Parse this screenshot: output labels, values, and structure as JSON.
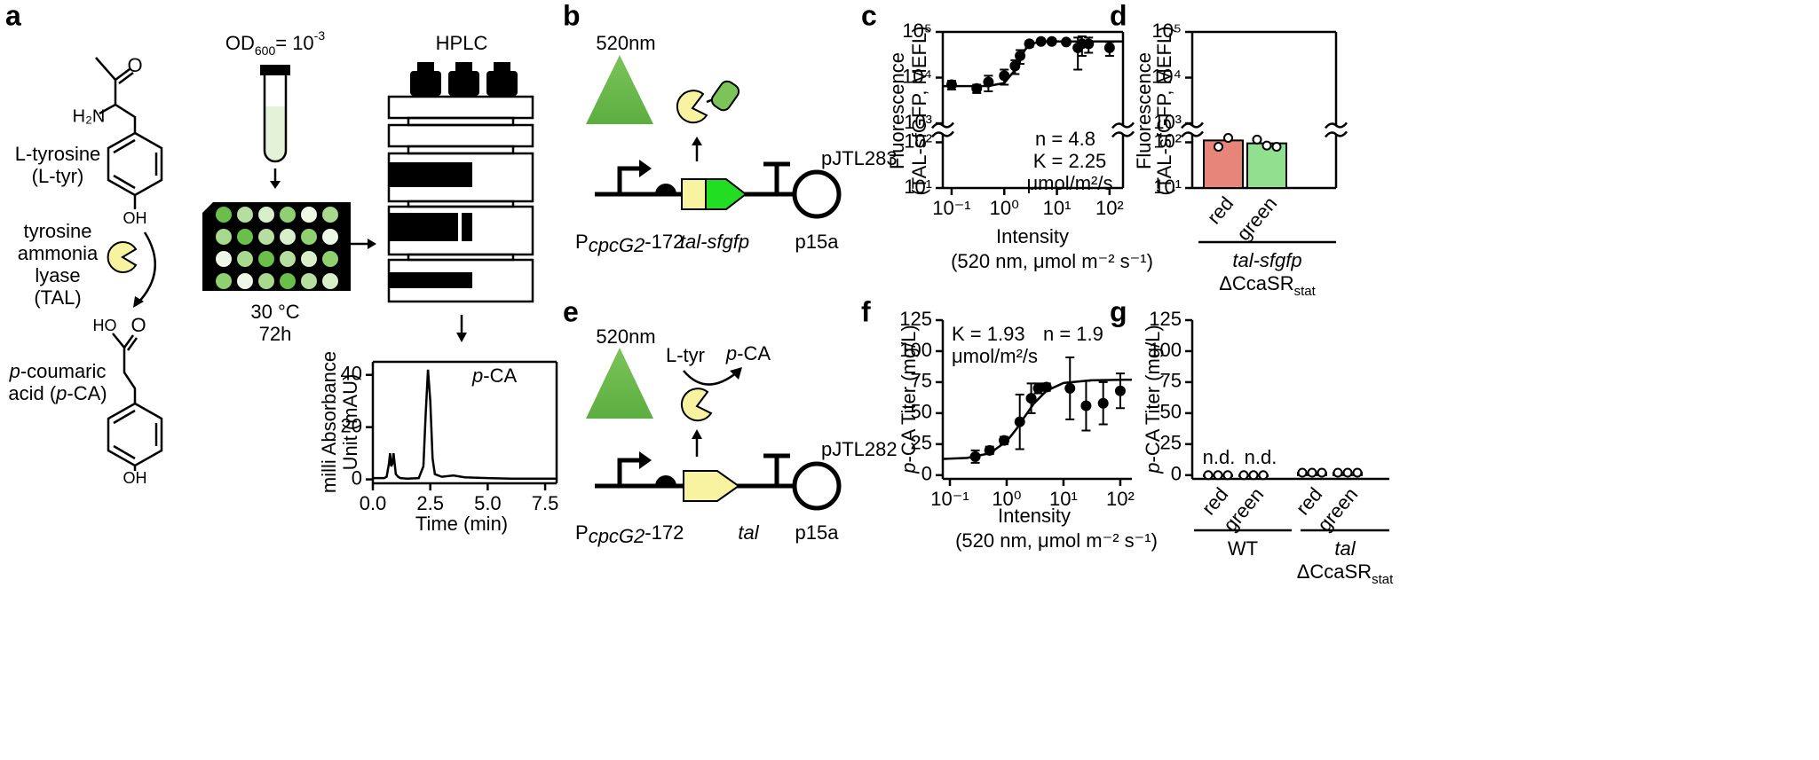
{
  "panel_labels": [
    "a",
    "b",
    "c",
    "d",
    "e",
    "f",
    "g"
  ],
  "panel_a": {
    "substrate": [
      "L-tyrosine",
      "(L-tyr)"
    ],
    "enzyme": [
      "tyrosine",
      "ammonia",
      "lyase",
      "(TAL)"
    ],
    "product": [
      [
        "p",
        "-coumaric"
      ],
      [
        "acid (",
        "p",
        "-CA)"
      ]
    ],
    "atoms": {
      "h2n": "H₂N",
      "o_top": "O",
      "oh_top": "OH",
      "ho": "HO",
      "o_bottom": "O",
      "oh_bottom": "OH"
    },
    "od": [
      "OD",
      "600",
      "= 10",
      "-3"
    ],
    "conditions": [
      "30 °C",
      "72h"
    ],
    "hplc": "HPLC"
  },
  "panel_b": {
    "light": "520nm",
    "plasmid": "pJTL283",
    "promoter": [
      "P",
      "cpcG2",
      "-172"
    ],
    "gene": "tal-sfgfp",
    "origin": "p15a"
  },
  "panel_e": {
    "light": "520nm",
    "substrate": "L-tyr",
    "product": [
      "p",
      "-CA"
    ],
    "plasmid": "pJTL282",
    "promoter": [
      "P",
      "cpcG2",
      "-172"
    ],
    "gene": "tal",
    "origin": "p15a"
  },
  "chart_data": [
    {
      "type": "line",
      "x_label": "Time (min)",
      "y_label": [
        "milli Absorbance",
        "Unit (mAU)"
      ],
      "annotation": [
        "p",
        "-CA"
      ],
      "color": "#000000",
      "xlim": [
        0,
        8
      ],
      "xticks": [
        {
          "value": 0,
          "label": "0.0"
        },
        {
          "value": 2.5,
          "label": "2.5"
        },
        {
          "value": 5,
          "label": "5.0"
        },
        {
          "value": 7.5,
          "label": "7.5"
        }
      ],
      "ylim": [
        -1.5,
        45
      ],
      "yticks": [
        0,
        20,
        40
      ],
      "x": [
        0.0,
        0.5,
        0.6,
        0.7,
        0.75,
        0.8,
        0.85,
        0.9,
        0.95,
        1.0,
        1.1,
        1.2,
        1.5,
        2.0,
        2.2,
        2.3,
        2.4,
        2.5,
        2.6,
        2.7,
        3.0,
        3.5,
        4.0,
        5.0,
        6.0,
        7.0,
        8.0
      ],
      "values": [
        0.5,
        0.5,
        1,
        6,
        10,
        5,
        6,
        10,
        6,
        2,
        1,
        0.5,
        0.3,
        0.5,
        5,
        25,
        42,
        30,
        8,
        2,
        1,
        1.5,
        0.8,
        0.5,
        0.3,
        0.3,
        0.3
      ]
    },
    {
      "type": "scatter",
      "x_label": [
        "Intensity",
        "(520 nm, μmol m⁻² s⁻¹)"
      ],
      "y_label": [
        "Fluorescence",
        "(TAL-sfGFP, MEFL)"
      ],
      "annotations": [
        "n = 4.8",
        "K = 2.25",
        "μmol/m²/s"
      ],
      "color": "#000000",
      "xscale": "log",
      "yscale": "log",
      "xlim": [
        0.068,
        180
      ],
      "ylim": [
        10,
        100000
      ],
      "y_break": [
        150,
        900
      ],
      "xticks": [
        {
          "value": 0.1,
          "label": "10⁻¹"
        },
        {
          "value": 1,
          "label": "10⁰"
        },
        {
          "value": 10,
          "label": "10¹"
        },
        {
          "value": 100,
          "label": "10²"
        }
      ],
      "yticks": [
        {
          "value": 10,
          "label": "10¹"
        },
        {
          "value": 100,
          "label": "10²"
        },
        {
          "value": 1000,
          "label": "10³"
        },
        {
          "value": 10000,
          "label": "10⁴"
        },
        {
          "value": 100000,
          "label": "10⁵"
        }
      ],
      "x": [
        0.1,
        0.3,
        0.5,
        1,
        1.6,
        2,
        3,
        5,
        8,
        15,
        25,
        30,
        40,
        100
      ],
      "values": [
        7000,
        5800,
        8000,
        11000,
        18000,
        30000,
        55000,
        62000,
        62000,
        60000,
        45000,
        55000,
        55000,
        45000
      ],
      "errors": [
        1500,
        1200,
        3000,
        4000,
        6000,
        10000,
        8000,
        4000,
        3000,
        5000,
        30000,
        25000,
        20000,
        15000
      ],
      "fit": {
        "x": [
          0.068,
          0.5,
          1,
          1.5,
          2,
          2.5,
          3,
          4,
          6,
          10,
          180
        ],
        "values": [
          6500,
          6540,
          7610,
          13440,
          26600,
          41130,
          50840,
          58670,
          61500,
          62000,
          62000
        ]
      }
    },
    {
      "type": "bar",
      "y_label": [
        "Fluorescence",
        "(TAL-sfGFP, MEFL)"
      ],
      "yscale": "log",
      "ylim": [
        10,
        100000
      ],
      "y_break": [
        150,
        900
      ],
      "yticks": [
        {
          "value": 10,
          "label": "10¹"
        },
        {
          "value": 100,
          "label": "10²"
        },
        {
          "value": 1000,
          "label": "10³"
        },
        {
          "value": 10000,
          "label": "10⁴"
        },
        {
          "value": 100000,
          "label": "10⁵"
        }
      ],
      "categories": [
        "red",
        "green"
      ],
      "values": [
        110,
        95
      ],
      "colors": [
        "#e8857a",
        "#90e090"
      ],
      "replicates": [
        [
          80,
          125
        ],
        [
          115,
          85,
          80
        ]
      ],
      "groups": [
        {
          "label": "tal-sfgfp",
          "strain": "ΔCcaSR",
          "strain_sub": "stat"
        }
      ]
    },
    {
      "type": "scatter",
      "x_label": [
        "Intensity",
        "(520 nm, μmol m⁻² s⁻¹)"
      ],
      "y_label": [
        "p",
        "-CA Titer (mg/L)"
      ],
      "annotations": [
        "K = 1.93",
        "n = 1.9",
        "μmol/m²/s"
      ],
      "color": "#000000",
      "xscale": "log",
      "xlim": [
        0.075,
        160
      ],
      "ylim": [
        -3,
        125
      ],
      "yticks": [
        0,
        25,
        50,
        75,
        100,
        125
      ],
      "xticks": [
        {
          "value": 0.1,
          "label": "10⁻¹"
        },
        {
          "value": 1,
          "label": "10⁰"
        },
        {
          "value": 10,
          "label": "10¹"
        },
        {
          "value": 100,
          "label": "10²"
        }
      ],
      "x": [
        0.28,
        0.5,
        0.9,
        1.7,
        2.7,
        3.6,
        5,
        13,
        25,
        50,
        100
      ],
      "values": [
        15,
        20,
        28,
        43,
        62,
        70,
        71,
        70,
        56,
        58,
        68
      ],
      "errors": [
        5,
        3,
        3,
        22,
        12,
        4,
        3,
        25,
        20,
        17,
        14
      ],
      "fit": {
        "x": [
          0.075,
          0.2,
          0.5,
          1,
          1.5,
          2,
          3,
          5,
          10,
          30,
          160
        ],
        "values": [
          13.1,
          13.9,
          17.6,
          27.3,
          37.5,
          46.1,
          57.7,
          68,
          74.3,
          76.5,
          77
        ]
      }
    },
    {
      "type": "bar",
      "y_label": [
        "p",
        "-CA Titer (mg/L)"
      ],
      "ylim": [
        -3,
        125
      ],
      "yticks": [
        0,
        25,
        50,
        75,
        100,
        125
      ],
      "categories": [
        "red",
        "green",
        "red",
        "green"
      ],
      "values": [
        0,
        0,
        2,
        2
      ],
      "colors": [
        "#e8857a",
        "#90e090",
        "#e8857a",
        "#90e090"
      ],
      "replicates": [
        [
          0,
          0,
          0
        ],
        [
          0,
          0,
          0
        ],
        [
          2,
          2,
          2
        ],
        [
          2,
          2,
          2
        ]
      ],
      "annotations": [
        "n.d.",
        "n.d."
      ],
      "groups": [
        {
          "label": "WT"
        },
        {
          "label": "tal",
          "strain": "ΔCcaSR",
          "strain_sub": "stat"
        }
      ]
    }
  ]
}
